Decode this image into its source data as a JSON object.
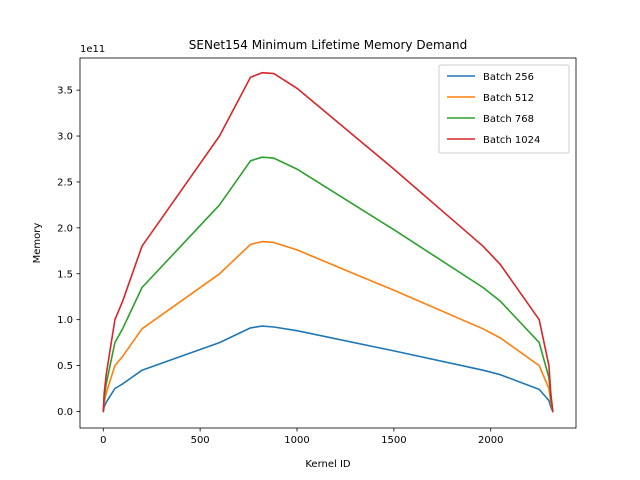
{
  "chart_data": {
    "type": "line",
    "title": "SENet154 Minimum Lifetime Memory Demand",
    "xlabel": "Kernel ID",
    "ylabel": "Memory",
    "y_offset_label": "1e11",
    "y_scale_factor": 100000000000,
    "xlim": [
      -120,
      2440
    ],
    "ylim": [
      -0.18,
      3.85
    ],
    "xticks": [
      0,
      500,
      1000,
      1500,
      2000
    ],
    "yticks": [
      0.0,
      0.5,
      1.0,
      1.5,
      2.0,
      2.5,
      3.0,
      3.5
    ],
    "xtick_labels": [
      "0",
      "500",
      "1000",
      "1500",
      "2000"
    ],
    "ytick_labels": [
      "0.0",
      "0.5",
      "1.0",
      "1.5",
      "2.0",
      "2.5",
      "3.0",
      "3.5"
    ],
    "grid": false,
    "legend_placement": "top-right",
    "series": [
      {
        "name": "Batch 256",
        "color": "#1f77b4",
        "x": [
          0,
          5,
          15,
          30,
          60,
          100,
          200,
          400,
          600,
          760,
          820,
          880,
          1000,
          1500,
          1960,
          2050,
          2250,
          2300,
          2310,
          2320
        ],
        "y": [
          0.0,
          0.05,
          0.1,
          0.15,
          0.25,
          0.3,
          0.45,
          0.6,
          0.75,
          0.91,
          0.93,
          0.92,
          0.88,
          0.66,
          0.45,
          0.4,
          0.24,
          0.12,
          0.05,
          0.0
        ]
      },
      {
        "name": "Batch 512",
        "color": "#ff7f0e",
        "x": [
          0,
          5,
          15,
          30,
          60,
          100,
          200,
          400,
          600,
          760,
          820,
          880,
          1000,
          1500,
          1960,
          2050,
          2250,
          2300,
          2310,
          2320
        ],
        "y": [
          0.0,
          0.1,
          0.2,
          0.3,
          0.5,
          0.6,
          0.9,
          1.2,
          1.5,
          1.82,
          1.85,
          1.84,
          1.76,
          1.32,
          0.9,
          0.8,
          0.5,
          0.25,
          0.1,
          0.0
        ]
      },
      {
        "name": "Batch 768",
        "color": "#2ca02c",
        "x": [
          0,
          5,
          15,
          30,
          60,
          100,
          200,
          400,
          600,
          760,
          820,
          880,
          1000,
          1500,
          1960,
          2050,
          2250,
          2300,
          2310,
          2320
        ],
        "y": [
          0.0,
          0.15,
          0.3,
          0.45,
          0.75,
          0.9,
          1.35,
          1.8,
          2.25,
          2.73,
          2.77,
          2.76,
          2.64,
          1.98,
          1.35,
          1.2,
          0.75,
          0.37,
          0.15,
          0.0
        ]
      },
      {
        "name": "Batch 1024",
        "color": "#d62728",
        "x": [
          0,
          5,
          15,
          30,
          60,
          100,
          200,
          400,
          600,
          760,
          820,
          880,
          1000,
          1500,
          1960,
          2050,
          2250,
          2300,
          2310,
          2320
        ],
        "y": [
          0.0,
          0.2,
          0.4,
          0.6,
          1.0,
          1.2,
          1.8,
          2.4,
          3.0,
          3.64,
          3.69,
          3.68,
          3.52,
          2.64,
          1.8,
          1.6,
          1.0,
          0.5,
          0.2,
          0.0
        ]
      }
    ]
  }
}
